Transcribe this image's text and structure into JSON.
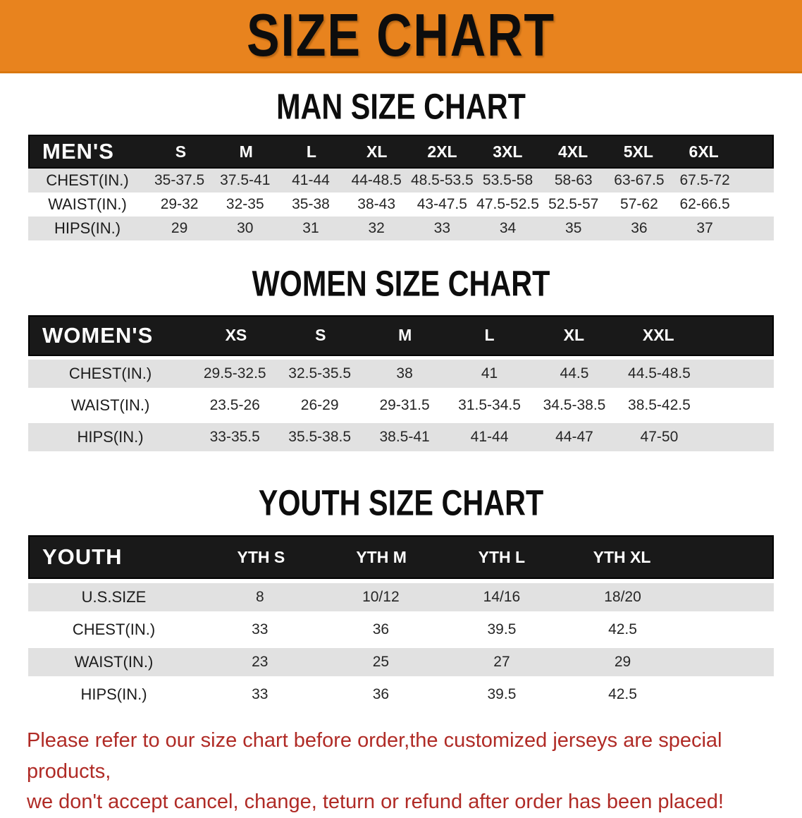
{
  "banner": {
    "title": "SIZE CHART"
  },
  "headings": {
    "men": "MAN SIZE CHART",
    "women": "WOMEN SIZE CHART",
    "youth": "YOUTH SIZE CHART"
  },
  "sections": {
    "men": {
      "header_label": "MEN'S",
      "columns": [
        "S",
        "M",
        "L",
        "XL",
        "2XL",
        "3XL",
        "4XL",
        "5XL",
        "6XL"
      ],
      "rows": [
        {
          "label": "CHEST(IN.)",
          "values": [
            "35-37.5",
            "37.5-41",
            "41-44",
            "44-48.5",
            "48.5-53.5",
            "53.5-58",
            "58-63",
            "63-67.5",
            "67.5-72"
          ]
        },
        {
          "label": "WAIST(IN.)",
          "values": [
            "29-32",
            "32-35",
            "35-38",
            "38-43",
            "43-47.5",
            "47.5-52.5",
            "52.5-57",
            "57-62",
            "62-66.5"
          ]
        },
        {
          "label": "HIPS(IN.)",
          "values": [
            "29",
            "30",
            "31",
            "32",
            "33",
            "34",
            "35",
            "36",
            "37"
          ]
        }
      ]
    },
    "women": {
      "header_label": "WOMEN'S",
      "columns": [
        "XS",
        "S",
        "M",
        "L",
        "XL",
        "XXL"
      ],
      "rows": [
        {
          "label": "CHEST(IN.)",
          "values": [
            "29.5-32.5",
            "32.5-35.5",
            "38",
            "41",
            "44.5",
            "44.5-48.5"
          ]
        },
        {
          "label": "WAIST(IN.)",
          "values": [
            "23.5-26",
            "26-29",
            "29-31.5",
            "31.5-34.5",
            "34.5-38.5",
            "38.5-42.5"
          ]
        },
        {
          "label": "HIPS(IN.)",
          "values": [
            "33-35.5",
            "35.5-38.5",
            "38.5-41",
            "41-44",
            "44-47",
            "47-50"
          ]
        }
      ]
    },
    "youth": {
      "header_label": "YOUTH",
      "columns": [
        "YTH S",
        "YTH M",
        "YTH L",
        "YTH XL"
      ],
      "rows": [
        {
          "label": "U.S.SIZE",
          "values": [
            "8",
            "10/12",
            "14/16",
            "18/20"
          ]
        },
        {
          "label": "CHEST(IN.)",
          "values": [
            "33",
            "36",
            "39.5",
            "42.5"
          ]
        },
        {
          "label": "WAIST(IN.)",
          "values": [
            "23",
            "25",
            "27",
            "29"
          ]
        },
        {
          "label": "HIPS(IN.)",
          "values": [
            "33",
            "36",
            "39.5",
            "42.5"
          ]
        }
      ]
    }
  },
  "footer": {
    "line1": "Please refer to our size chart before order,the customized jerseys are special products,",
    "line2": "we don't accept cancel, change, teturn or refund after order has been placed!"
  },
  "colors": {
    "banner_orange": "#E8831E",
    "header_black": "#191919",
    "row_gray": "#E1E1E1",
    "footer_red": "#B02B26"
  }
}
